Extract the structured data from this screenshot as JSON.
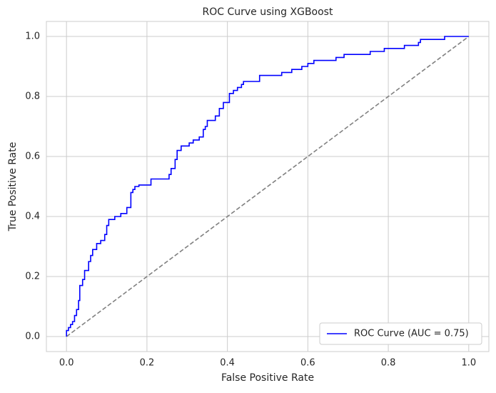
{
  "chart_data": {
    "type": "line",
    "title": "ROC Curve using XGBoost",
    "x_label": "False Positive Rate",
    "y_label": "True Positive Rate",
    "xlim": [
      -0.05,
      1.05
    ],
    "ylim": [
      -0.05,
      1.05
    ],
    "xticks": [
      {
        "value": 0,
        "label": "0.0"
      },
      0.2,
      0.4,
      0.6,
      0.8,
      {
        "value": 1,
        "label": "1.0"
      }
    ],
    "yticks": [
      {
        "value": 0,
        "label": "0.0"
      },
      0.2,
      0.4,
      0.6,
      0.8,
      {
        "value": 1,
        "label": "1.0"
      }
    ],
    "grid": true,
    "legend": "lower right",
    "series": [
      {
        "name": "ROC Curve (AUC = 0.75)",
        "color": "#0000ff",
        "x": [
          0,
          0,
          0.005,
          0.005,
          0.01,
          0.01,
          0.015,
          0.015,
          0.02,
          0.02,
          0.025,
          0.025,
          0.03,
          0.03,
          0.033,
          0.033,
          0.04,
          0.04,
          0.045,
          0.045,
          0.055,
          0.055,
          0.06,
          0.06,
          0.065,
          0.065,
          0.075,
          0.075,
          0.085,
          0.085,
          0.095,
          0.095,
          0.1,
          0.1,
          0.105,
          0.105,
          0.12,
          0.12,
          0.135,
          0.135,
          0.15,
          0.15,
          0.16,
          0.16,
          0.165,
          0.165,
          0.17,
          0.17,
          0.18,
          0.18,
          0.21,
          0.21,
          0.255,
          0.255,
          0.26,
          0.26,
          0.27,
          0.27,
          0.275,
          0.275,
          0.285,
          0.285,
          0.305,
          0.305,
          0.315,
          0.315,
          0.33,
          0.33,
          0.34,
          0.34,
          0.345,
          0.345,
          0.35,
          0.35,
          0.37,
          0.37,
          0.38,
          0.38,
          0.39,
          0.39,
          0.405,
          0.405,
          0.415,
          0.415,
          0.425,
          0.425,
          0.435,
          0.435,
          0.44,
          0.44,
          0.48,
          0.48,
          0.535,
          0.535,
          0.56,
          0.56,
          0.585,
          0.585,
          0.6,
          0.6,
          0.615,
          0.615,
          0.67,
          0.67,
          0.69,
          0.69,
          0.755,
          0.755,
          0.79,
          0.79,
          0.84,
          0.84,
          0.875,
          0.875,
          0.88,
          0.88,
          0.94,
          0.94,
          1
        ],
        "y": [
          0,
          0.02,
          0.02,
          0.03,
          0.03,
          0.04,
          0.04,
          0.05,
          0.05,
          0.07,
          0.07,
          0.09,
          0.09,
          0.12,
          0.12,
          0.17,
          0.17,
          0.19,
          0.19,
          0.22,
          0.22,
          0.25,
          0.25,
          0.27,
          0.27,
          0.29,
          0.29,
          0.31,
          0.31,
          0.32,
          0.32,
          0.34,
          0.34,
          0.37,
          0.37,
          0.39,
          0.39,
          0.4,
          0.4,
          0.41,
          0.41,
          0.43,
          0.43,
          0.48,
          0.48,
          0.49,
          0.49,
          0.5,
          0.5,
          0.505,
          0.505,
          0.525,
          0.525,
          0.54,
          0.54,
          0.56,
          0.56,
          0.59,
          0.59,
          0.62,
          0.62,
          0.635,
          0.635,
          0.645,
          0.645,
          0.655,
          0.655,
          0.665,
          0.665,
          0.69,
          0.69,
          0.7,
          0.7,
          0.72,
          0.72,
          0.735,
          0.735,
          0.76,
          0.76,
          0.78,
          0.78,
          0.81,
          0.81,
          0.82,
          0.82,
          0.83,
          0.83,
          0.84,
          0.84,
          0.85,
          0.85,
          0.87,
          0.87,
          0.88,
          0.88,
          0.89,
          0.89,
          0.9,
          0.9,
          0.91,
          0.91,
          0.92,
          0.92,
          0.93,
          0.93,
          0.94,
          0.94,
          0.95,
          0.95,
          0.96,
          0.96,
          0.97,
          0.97,
          0.98,
          0.98,
          0.99,
          0.99,
          1,
          1
        ]
      },
      {
        "color": "#808080",
        "dashed": true,
        "x": [
          0,
          1
        ],
        "y": [
          0,
          1
        ]
      }
    ]
  }
}
